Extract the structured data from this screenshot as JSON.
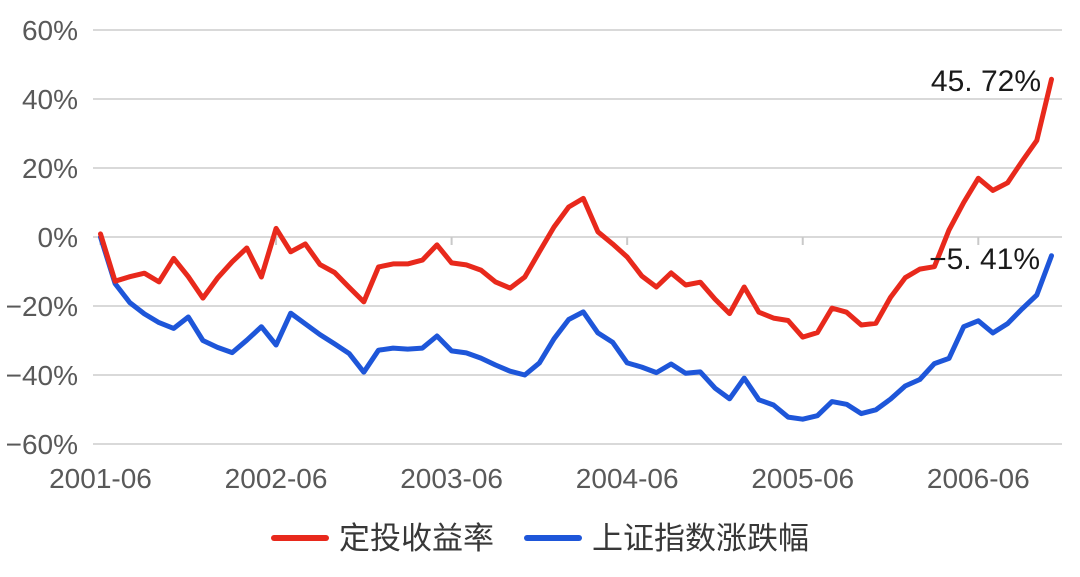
{
  "page": {
    "background": "#ffffff"
  },
  "chart_data": {
    "type": "line",
    "title": "",
    "x_axis": {
      "start": "2001-06",
      "interval": "month",
      "total_points": 66,
      "tick_labels": [
        "2001-06",
        "2002-06",
        "2003-06",
        "2004-06",
        "2005-06",
        "2006-06"
      ],
      "tick_month_indices": [
        0,
        12,
        24,
        36,
        48,
        60
      ]
    },
    "y_axis": {
      "unit": "%",
      "range": [
        -60,
        60
      ],
      "tick_labels": [
        "60%",
        "40%",
        "20%",
        "0%",
        "−20%",
        "−40%",
        "−60%"
      ],
      "tick_values": [
        60,
        40,
        20,
        0,
        -20,
        -40,
        -60
      ]
    },
    "grid": {
      "horizontal": true,
      "vertical": false,
      "color": "#d9d9d9",
      "tick_color": "#c9c9c9"
    },
    "legend": {
      "position": "bottom-center"
    },
    "axis_text_color": "#595959",
    "annotation_color": "#1a1a1a",
    "series": [
      {
        "name": "定投收益率",
        "color": "#e8291c",
        "end_value": 45.72,
        "end_label": "45. 72%",
        "values": [
          0.9,
          -12.8,
          -11.5,
          -10.5,
          -13.0,
          -6.2,
          -11.5,
          -17.7,
          -11.9,
          -7.2,
          -3.2,
          -11.6,
          2.5,
          -4.3,
          -2.0,
          -8.0,
          -10.3,
          -14.6,
          -18.8,
          -8.7,
          -7.8,
          -7.8,
          -6.7,
          -2.3,
          -7.5,
          -8.1,
          -9.6,
          -13.0,
          -14.8,
          -11.6,
          -4.3,
          2.9,
          8.7,
          11.2,
          1.5,
          -2.0,
          -5.8,
          -11.3,
          -14.5,
          -10.4,
          -13.9,
          -13.1,
          -18.0,
          -22.2,
          -14.5,
          -21.8,
          -23.5,
          -24.2,
          -29.0,
          -27.7,
          -20.6,
          -21.8,
          -25.5,
          -25.0,
          -17.5,
          -11.8,
          -9.3,
          -8.6,
          2.0,
          10.0,
          17.0,
          13.5,
          15.7,
          22.0,
          28.0,
          45.72
        ]
      },
      {
        "name": "上证指数涨跌幅",
        "color": "#1e56d9",
        "end_value": -5.41,
        "end_label": "−5. 41%",
        "values": [
          0.0,
          -13.5,
          -19.0,
          -22.3,
          -24.8,
          -26.5,
          -23.2,
          -30.0,
          -32.0,
          -33.5,
          -29.9,
          -26.0,
          -31.3,
          -22.1,
          -25.2,
          -28.3,
          -31.0,
          -33.8,
          -39.2,
          -32.8,
          -32.2,
          -32.5,
          -32.2,
          -28.7,
          -33.0,
          -33.6,
          -35.1,
          -37.1,
          -38.9,
          -40.0,
          -36.5,
          -29.5,
          -23.9,
          -21.7,
          -27.8,
          -30.5,
          -36.5,
          -37.7,
          -39.3,
          -36.8,
          -39.5,
          -39.1,
          -43.8,
          -46.9,
          -40.9,
          -47.2,
          -48.7,
          -52.2,
          -52.8,
          -51.8,
          -47.7,
          -48.5,
          -51.2,
          -50.1,
          -47.0,
          -43.2,
          -41.3,
          -36.7,
          -35.2,
          -26.0,
          -24.3,
          -27.8,
          -25.1,
          -20.8,
          -16.8,
          -5.41
        ]
      }
    ]
  }
}
